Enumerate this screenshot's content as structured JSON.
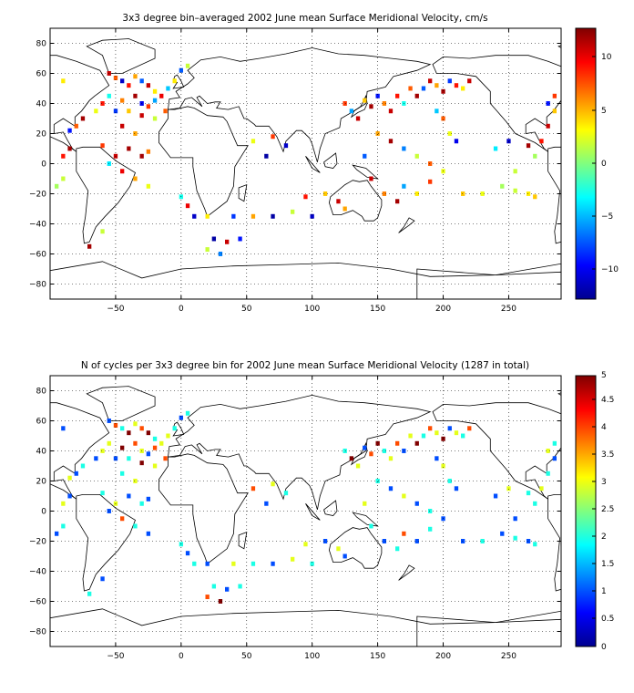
{
  "panels": [
    {
      "title": "3x3 degree bin–averaged 2002 June mean Surface Meridional Velocity, cm/s",
      "colorbar_ticks": [
        "10",
        "5",
        "0",
        "−5",
        "−10"
      ]
    },
    {
      "title": "N of cycles per 3x3 degree bin for 2002 June mean Surface Meridional Velocity (1287 in total)",
      "colorbar_ticks": [
        "5",
        "4.5",
        "4",
        "3.5",
        "3",
        "2.5",
        "2",
        "1.5",
        "1",
        "0.5",
        "0"
      ]
    }
  ],
  "chart_data": [
    {
      "type": "heatmap",
      "title": "3x3 degree bin–averaged 2002 June mean Surface Meridional Velocity, cm/s",
      "xlim": [
        -100,
        290
      ],
      "ylim": [
        -90,
        90
      ],
      "xticks": [
        -50,
        0,
        50,
        100,
        150,
        200,
        250
      ],
      "yticks": [
        -80,
        -60,
        -40,
        -20,
        0,
        20,
        40,
        60,
        80
      ],
      "grid": true,
      "colorbar": {
        "min": -14,
        "max": 14,
        "ticks": [
          10,
          5,
          0,
          -5,
          -10
        ],
        "colormap": "jet"
      },
      "basemap": "world coastlines",
      "points": [
        [
          -55,
          60,
          12
        ],
        [
          -50,
          57,
          8
        ],
        [
          -45,
          55,
          -12
        ],
        [
          -40,
          52,
          10
        ],
        [
          -35,
          58,
          6
        ],
        [
          -30,
          55,
          -8
        ],
        [
          -25,
          52,
          12
        ],
        [
          -20,
          48,
          4
        ],
        [
          -55,
          45,
          -3
        ],
        [
          -45,
          42,
          7
        ],
        [
          -35,
          45,
          13
        ],
        [
          -30,
          40,
          -11
        ],
        [
          -25,
          38,
          9
        ],
        [
          -20,
          42,
          -6
        ],
        [
          -15,
          45,
          11
        ],
        [
          -40,
          35,
          5
        ],
        [
          -30,
          32,
          12
        ],
        [
          -50,
          35,
          -9
        ],
        [
          -60,
          40,
          10
        ],
        [
          -65,
          35,
          3
        ],
        [
          -75,
          30,
          13
        ],
        [
          -80,
          25,
          8
        ],
        [
          -85,
          22,
          -10
        ],
        [
          -45,
          25,
          12
        ],
        [
          -35,
          20,
          6
        ],
        [
          -40,
          10,
          13
        ],
        [
          -30,
          5,
          13
        ],
        [
          -25,
          8,
          7
        ],
        [
          -50,
          5,
          12
        ],
        [
          -60,
          12,
          9
        ],
        [
          -55,
          0,
          -4
        ],
        [
          -45,
          -5,
          11
        ],
        [
          -35,
          -10,
          6
        ],
        [
          -25,
          -15,
          3
        ],
        [
          -90,
          -10,
          2
        ],
        [
          -95,
          -15,
          1
        ],
        [
          -10,
          50,
          -5
        ],
        [
          -5,
          55,
          4
        ],
        [
          0,
          62,
          -8
        ],
        [
          5,
          65,
          2
        ],
        [
          -12,
          35,
          8
        ],
        [
          -20,
          30,
          2
        ],
        [
          -85,
          10,
          13
        ],
        [
          -90,
          5,
          10
        ],
        [
          -70,
          -55,
          13
        ],
        [
          -60,
          -45,
          2
        ],
        [
          0,
          -22,
          -3
        ],
        [
          5,
          -28,
          11
        ],
        [
          10,
          -35,
          -12
        ],
        [
          20,
          -35,
          4
        ],
        [
          40,
          -35,
          -9
        ],
        [
          55,
          -35,
          6
        ],
        [
          70,
          -35,
          -13
        ],
        [
          85,
          -32,
          2
        ],
        [
          100,
          -35,
          -12
        ],
        [
          95,
          -22,
          10
        ],
        [
          110,
          -20,
          5
        ],
        [
          25,
          -50,
          -13
        ],
        [
          35,
          -52,
          12
        ],
        [
          45,
          -50,
          -10
        ],
        [
          20,
          -57,
          2
        ],
        [
          30,
          -60,
          -7
        ],
        [
          70,
          18,
          9
        ],
        [
          80,
          12,
          -12
        ],
        [
          65,
          5,
          -13
        ],
        [
          55,
          15,
          3
        ],
        [
          125,
          40,
          9
        ],
        [
          130,
          35,
          -6
        ],
        [
          135,
          30,
          12
        ],
        [
          140,
          42,
          5
        ],
        [
          145,
          38,
          13
        ],
        [
          150,
          45,
          -10
        ],
        [
          155,
          40,
          7
        ],
        [
          160,
          35,
          12
        ],
        [
          165,
          45,
          10
        ],
        [
          170,
          40,
          -3
        ],
        [
          175,
          50,
          8
        ],
        [
          180,
          45,
          13
        ],
        [
          185,
          50,
          -8
        ],
        [
          190,
          55,
          12
        ],
        [
          195,
          52,
          6
        ],
        [
          200,
          48,
          13
        ],
        [
          205,
          55,
          -9
        ],
        [
          210,
          52,
          10
        ],
        [
          215,
          50,
          4
        ],
        [
          220,
          55,
          12
        ],
        [
          195,
          35,
          -5
        ],
        [
          200,
          30,
          8
        ],
        [
          205,
          20,
          3
        ],
        [
          210,
          15,
          -11
        ],
        [
          150,
          20,
          6
        ],
        [
          160,
          15,
          13
        ],
        [
          170,
          10,
          -7
        ],
        [
          180,
          5,
          2
        ],
        [
          190,
          0,
          8
        ],
        [
          200,
          -5,
          3
        ],
        [
          140,
          5,
          -8
        ],
        [
          145,
          -10,
          12
        ],
        [
          155,
          -20,
          7
        ],
        [
          165,
          -25,
          13
        ],
        [
          170,
          -15,
          -6
        ],
        [
          180,
          -20,
          4
        ],
        [
          190,
          -12,
          9
        ],
        [
          120,
          -25,
          12
        ],
        [
          125,
          -30,
          6
        ],
        [
          215,
          -20,
          5
        ],
        [
          230,
          -20,
          3
        ],
        [
          245,
          -15,
          1
        ],
        [
          255,
          -18,
          2
        ],
        [
          265,
          -20,
          4
        ],
        [
          270,
          -22,
          5
        ],
        [
          255,
          -5,
          2
        ],
        [
          270,
          5,
          1
        ],
        [
          240,
          10,
          -4
        ],
        [
          250,
          15,
          -12
        ],
        [
          265,
          12,
          13
        ],
        [
          275,
          15,
          10
        ],
        [
          280,
          25,
          12
        ],
        [
          285,
          35,
          5
        ],
        [
          280,
          40,
          -10
        ],
        [
          285,
          45,
          9
        ],
        [
          -90,
          55,
          4
        ]
      ]
    },
    {
      "type": "heatmap",
      "title": "N of cycles per 3x3 degree bin for 2002 June mean Surface Meridional Velocity (1287 in total)",
      "xlim": [
        -100,
        290
      ],
      "ylim": [
        -90,
        90
      ],
      "xticks": [
        -50,
        0,
        50,
        100,
        150,
        200,
        250
      ],
      "yticks": [
        -80,
        -60,
        -40,
        -20,
        0,
        20,
        40,
        60,
        80
      ],
      "grid": true,
      "colorbar": {
        "min": 0,
        "max": 5,
        "ticks": [
          5,
          4.5,
          4,
          3.5,
          3,
          2.5,
          2,
          1.5,
          1,
          0.5,
          0
        ],
        "colormap": "jet"
      },
      "basemap": "world coastlines",
      "points": [
        [
          -55,
          60,
          1
        ],
        [
          -50,
          57,
          4
        ],
        [
          -45,
          55,
          2
        ],
        [
          -40,
          52,
          5
        ],
        [
          -35,
          58,
          3
        ],
        [
          -30,
          55,
          4
        ],
        [
          -25,
          52,
          5
        ],
        [
          -20,
          48,
          2
        ],
        [
          -55,
          45,
          3
        ],
        [
          -45,
          42,
          5
        ],
        [
          -35,
          45,
          4
        ],
        [
          -30,
          40,
          3
        ],
        [
          -25,
          38,
          1
        ],
        [
          -20,
          42,
          4
        ],
        [
          -15,
          45,
          3
        ],
        [
          -40,
          35,
          2
        ],
        [
          -30,
          32,
          5
        ],
        [
          -50,
          35,
          1
        ],
        [
          -60,
          40,
          3
        ],
        [
          -65,
          35,
          1
        ],
        [
          -75,
          30,
          2
        ],
        [
          -80,
          25,
          1
        ],
        [
          -85,
          22,
          3
        ],
        [
          -45,
          25,
          2
        ],
        [
          -35,
          20,
          3
        ],
        [
          -40,
          10,
          1
        ],
        [
          -30,
          5,
          2
        ],
        [
          -25,
          8,
          1
        ],
        [
          -50,
          5,
          3
        ],
        [
          -60,
          12,
          2
        ],
        [
          -55,
          0,
          1
        ],
        [
          -45,
          -5,
          4
        ],
        [
          -35,
          -10,
          2
        ],
        [
          -25,
          -15,
          1
        ],
        [
          -90,
          -10,
          2
        ],
        [
          -95,
          -15,
          1
        ],
        [
          -10,
          50,
          3
        ],
        [
          -5,
          55,
          2
        ],
        [
          0,
          62,
          1
        ],
        [
          5,
          65,
          2
        ],
        [
          -12,
          35,
          4
        ],
        [
          -20,
          30,
          3
        ],
        [
          -85,
          10,
          1
        ],
        [
          -90,
          5,
          3
        ],
        [
          -70,
          -55,
          2
        ],
        [
          -60,
          -45,
          1
        ],
        [
          0,
          -22,
          2
        ],
        [
          5,
          -28,
          1
        ],
        [
          10,
          -35,
          2
        ],
        [
          20,
          -35,
          1
        ],
        [
          40,
          -35,
          3
        ],
        [
          55,
          -35,
          2
        ],
        [
          70,
          -35,
          1
        ],
        [
          85,
          -32,
          3
        ],
        [
          100,
          -35,
          2
        ],
        [
          95,
          -22,
          3
        ],
        [
          110,
          -20,
          1
        ],
        [
          25,
          -50,
          2
        ],
        [
          35,
          -52,
          1
        ],
        [
          45,
          -50,
          2
        ],
        [
          20,
          -57,
          4
        ],
        [
          30,
          -60,
          5
        ],
        [
          70,
          18,
          3
        ],
        [
          80,
          12,
          2
        ],
        [
          65,
          5,
          1
        ],
        [
          55,
          15,
          4
        ],
        [
          125,
          40,
          2
        ],
        [
          130,
          35,
          5
        ],
        [
          135,
          30,
          3
        ],
        [
          140,
          42,
          1
        ],
        [
          145,
          38,
          4
        ],
        [
          150,
          45,
          5
        ],
        [
          155,
          40,
          2
        ],
        [
          160,
          35,
          3
        ],
        [
          165,
          45,
          4
        ],
        [
          170,
          40,
          1
        ],
        [
          175,
          50,
          3
        ],
        [
          180,
          45,
          5
        ],
        [
          185,
          50,
          2
        ],
        [
          190,
          55,
          4
        ],
        [
          195,
          52,
          3
        ],
        [
          200,
          48,
          5
        ],
        [
          205,
          55,
          1
        ],
        [
          210,
          52,
          3
        ],
        [
          215,
          50,
          2
        ],
        [
          220,
          55,
          4
        ],
        [
          195,
          35,
          1
        ],
        [
          200,
          30,
          3
        ],
        [
          205,
          20,
          2
        ],
        [
          210,
          15,
          1
        ],
        [
          150,
          20,
          2
        ],
        [
          160,
          15,
          1
        ],
        [
          170,
          10,
          3
        ],
        [
          180,
          5,
          1
        ],
        [
          190,
          0,
          2
        ],
        [
          200,
          -5,
          1
        ],
        [
          140,
          5,
          3
        ],
        [
          145,
          -10,
          2
        ],
        [
          155,
          -20,
          1
        ],
        [
          165,
          -25,
          2
        ],
        [
          170,
          -15,
          4
        ],
        [
          180,
          -20,
          1
        ],
        [
          190,
          -12,
          2
        ],
        [
          120,
          -25,
          3
        ],
        [
          125,
          -30,
          1
        ],
        [
          215,
          -20,
          1
        ],
        [
          230,
          -20,
          2
        ],
        [
          245,
          -15,
          1
        ],
        [
          255,
          -18,
          2
        ],
        [
          265,
          -20,
          1
        ],
        [
          270,
          -22,
          2
        ],
        [
          255,
          -5,
          1
        ],
        [
          270,
          5,
          2
        ],
        [
          240,
          10,
          1
        ],
        [
          250,
          15,
          3
        ],
        [
          265,
          12,
          2
        ],
        [
          275,
          15,
          3
        ],
        [
          280,
          25,
          2
        ],
        [
          285,
          35,
          1
        ],
        [
          280,
          40,
          3
        ],
        [
          285,
          45,
          2
        ],
        [
          -90,
          55,
          1
        ]
      ]
    }
  ]
}
